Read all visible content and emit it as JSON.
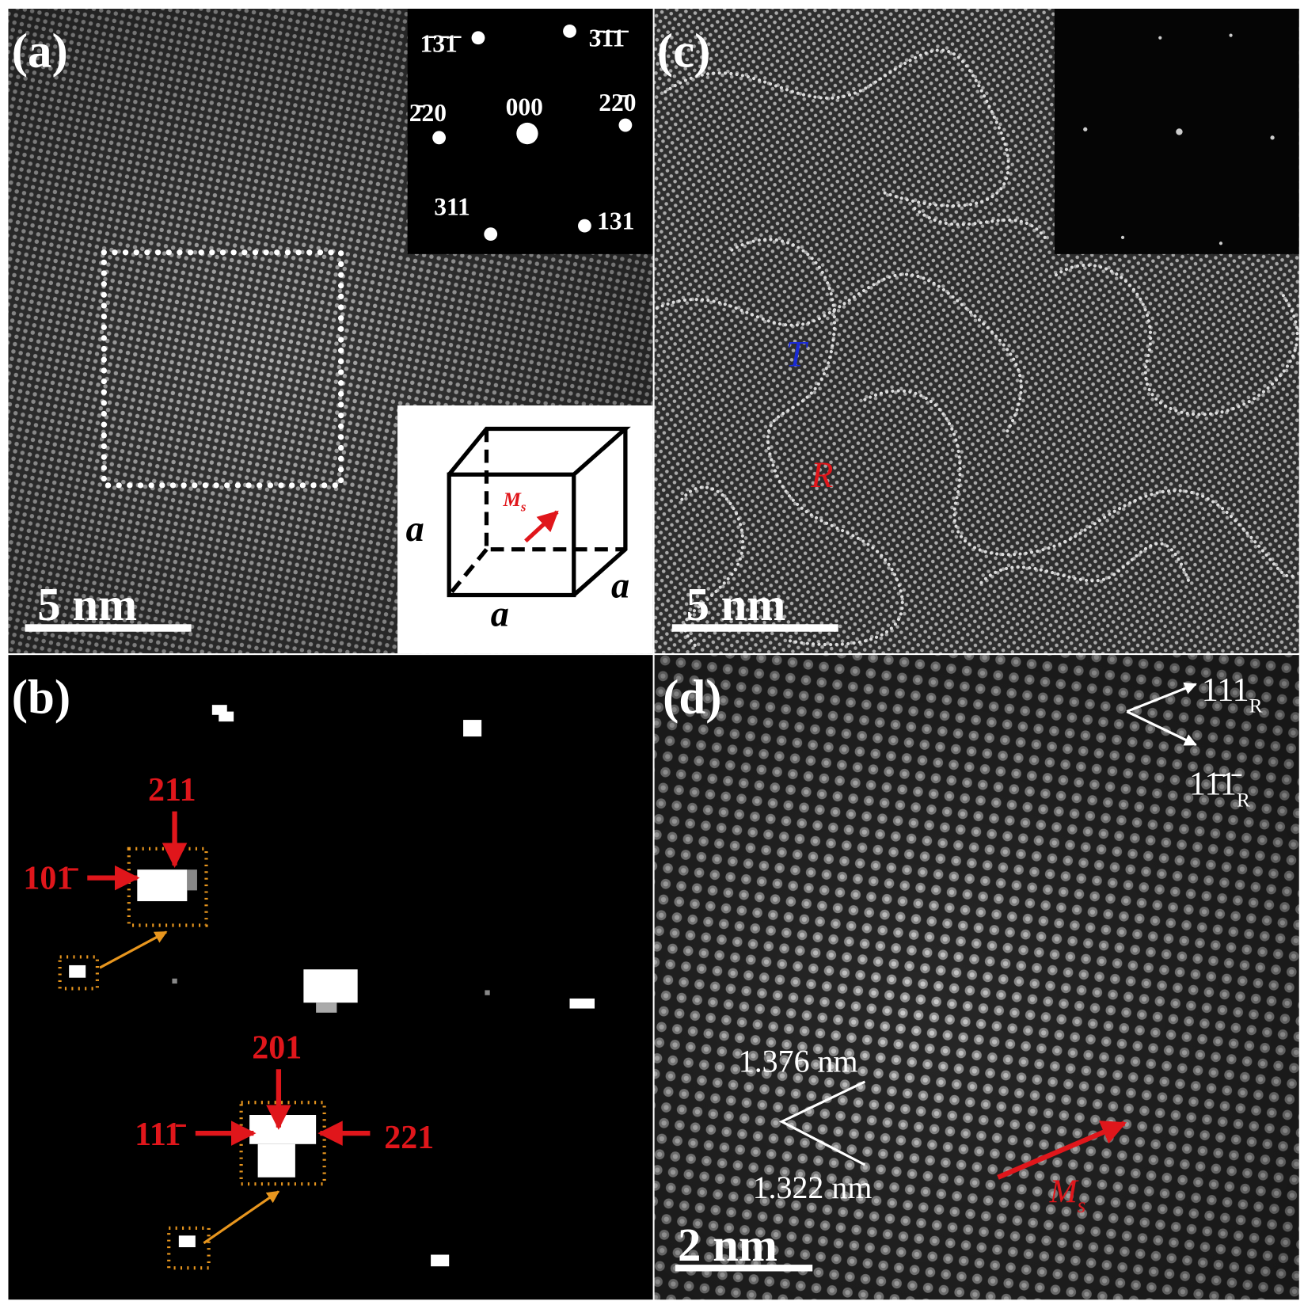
{
  "panel_a": {
    "label": "(a)",
    "scale_bar": "5 nm",
    "diffraction": [
      "1̄3̄1̄",
      "3̄1̄1̄",
      "2̄20",
      "000",
      "22̄0",
      "311",
      "131"
    ],
    "cube": {
      "edges": [
        "a",
        "a",
        "a"
      ],
      "moment": {
        "text": "M",
        "sub": "s"
      }
    }
  },
  "panel_b": {
    "label": "(b)",
    "spots": [
      "211",
      "101̄",
      "201",
      "111̄",
      "221"
    ]
  },
  "panel_c": {
    "label": "(c)",
    "scale_bar": "5 nm",
    "phases": [
      "T",
      "R"
    ]
  },
  "panel_d": {
    "label": "(d)",
    "scale_bar": "2 nm",
    "directions": [
      {
        "text": "111",
        "sub": "R"
      },
      {
        "text": "11̄1̄",
        "sub": "R"
      }
    ],
    "spacings": [
      "1.376 nm",
      "1.322 nm"
    ],
    "moment": {
      "text": "M",
      "sub": "s"
    }
  }
}
